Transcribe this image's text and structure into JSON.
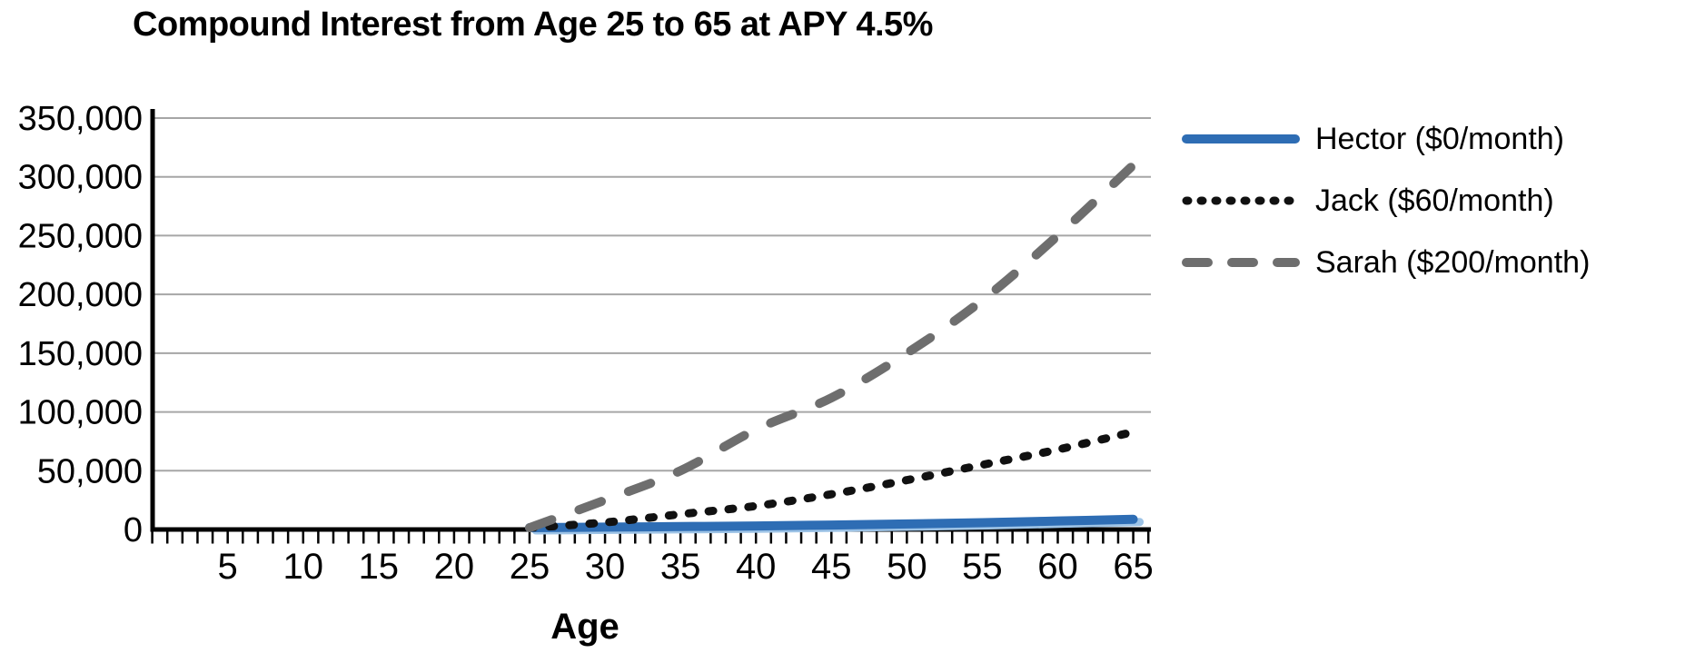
{
  "page": {
    "background": "#ffffff"
  },
  "chart_data": {
    "type": "line",
    "title": "Compound Interest from Age 25 to 65 at APY 4.5%",
    "xlabel": "Age",
    "ylabel": "",
    "xlim": [
      0,
      66
    ],
    "ylim": [
      0,
      350000
    ],
    "grid": "horizontal gray lines every 50,000",
    "legend_position": "right-of-plot",
    "x_minor_tick_step": 1,
    "x_labeled_ticks": [
      5,
      10,
      15,
      20,
      25,
      30,
      35,
      40,
      45,
      50,
      55,
      60,
      65
    ],
    "y_ticks": [
      {
        "value": 0,
        "label": "0"
      },
      {
        "value": 50000,
        "label": "50,000"
      },
      {
        "value": 100000,
        "label": "100,000"
      },
      {
        "value": 150000,
        "label": "150,000"
      },
      {
        "value": 200000,
        "label": "200,000"
      },
      {
        "value": 250000,
        "label": "250,000"
      },
      {
        "value": 300000,
        "label": "300,000"
      },
      {
        "value": 350000,
        "label": "350,000"
      }
    ],
    "x": [
      25,
      30,
      35,
      40,
      45,
      50,
      55,
      60,
      65
    ],
    "series": [
      {
        "name": "Hector ($0/month)",
        "style": "solid",
        "color": "#2e6db4",
        "shadow_color": "#9dc3e6",
        "values": [
          1500,
          2000,
          2500,
          3000,
          3800,
          4700,
          5800,
          7200,
          8700
        ]
      },
      {
        "name": "Jack ($60/month)",
        "style": "dotted",
        "color": "#111111",
        "values": [
          1500,
          6000,
          13000,
          20000,
          30000,
          42000,
          55000,
          68000,
          83000
        ]
      },
      {
        "name": "Sarah ($200/month)",
        "style": "dashed",
        "color": "#6e6e6e",
        "values": [
          1500,
          25000,
          50000,
          85000,
          112000,
          150000,
          195000,
          250000,
          310000
        ]
      }
    ],
    "colors": {
      "gridline": "#a6a6a6",
      "axis": "#000000",
      "text": "#000000"
    }
  }
}
